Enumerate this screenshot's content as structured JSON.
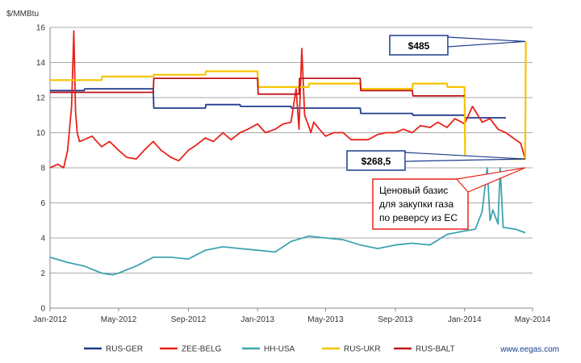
{
  "chart_data": {
    "type": "line",
    "ylabel": "$/MMBtu",
    "ylim": [
      0,
      16
    ],
    "yticks": [
      0,
      2,
      4,
      6,
      8,
      10,
      12,
      14,
      16
    ],
    "xlim": [
      "2012-01-01",
      "2014-05-01"
    ],
    "xticks": [
      {
        "date": "2012-01-01",
        "label": "Jan-2012"
      },
      {
        "date": "2012-05-01",
        "label": "May-2012"
      },
      {
        "date": "2012-09-01",
        "label": "Sep-2012"
      },
      {
        "date": "2013-01-01",
        "label": "Jan-2013"
      },
      {
        "date": "2013-05-01",
        "label": "May-2013"
      },
      {
        "date": "2013-09-01",
        "label": "Sep-2013"
      },
      {
        "date": "2014-01-01",
        "label": "Jan-2014"
      },
      {
        "date": "2014-05-01",
        "label": "May-2014"
      }
    ],
    "grid": true,
    "legend_position": "bottom",
    "series": [
      {
        "name": "RUS-GER",
        "color": "#1f3b8c",
        "x": [
          "2012-01-01",
          "2012-03-01",
          "2012-03-02",
          "2012-07-01",
          "2012-07-02",
          "2012-10-01",
          "2012-10-02",
          "2012-12-01",
          "2012-12-02",
          "2013-03-01",
          "2013-03-02",
          "2013-07-01",
          "2013-07-02",
          "2013-10-01",
          "2013-10-02",
          "2014-01-01",
          "2014-01-02",
          "2014-03-15"
        ],
        "y": [
          12.4,
          12.4,
          12.5,
          12.5,
          11.4,
          11.4,
          11.6,
          11.6,
          11.5,
          11.5,
          11.4,
          11.4,
          11.1,
          11.1,
          11.0,
          11.0,
          10.85,
          10.85
        ]
      },
      {
        "name": "ZEE-BELG",
        "color": "#e8231b",
        "x": [
          "2012-01-01",
          "2012-01-15",
          "2012-01-25",
          "2012-02-01",
          "2012-02-08",
          "2012-02-12",
          "2012-02-15",
          "2012-02-18",
          "2012-02-22",
          "2012-03-01",
          "2012-03-15",
          "2012-04-01",
          "2012-04-15",
          "2012-05-01",
          "2012-05-15",
          "2012-06-01",
          "2012-06-15",
          "2012-07-01",
          "2012-07-15",
          "2012-08-01",
          "2012-08-15",
          "2012-09-01",
          "2012-09-15",
          "2012-10-01",
          "2012-10-15",
          "2012-11-01",
          "2012-11-15",
          "2012-12-01",
          "2012-12-15",
          "2013-01-01",
          "2013-01-15",
          "2013-02-01",
          "2013-02-15",
          "2013-03-01",
          "2013-03-10",
          "2013-03-15",
          "2013-03-20",
          "2013-03-25",
          "2013-04-01",
          "2013-04-05",
          "2013-04-10",
          "2013-04-20",
          "2013-05-01",
          "2013-05-15",
          "2013-06-01",
          "2013-06-15",
          "2013-07-01",
          "2013-07-15",
          "2013-08-01",
          "2013-08-15",
          "2013-09-01",
          "2013-09-15",
          "2013-10-01",
          "2013-10-15",
          "2013-11-01",
          "2013-11-15",
          "2013-12-01",
          "2013-12-15",
          "2014-01-01",
          "2014-01-15",
          "2014-02-01",
          "2014-02-15",
          "2014-03-01",
          "2014-03-15",
          "2014-04-01",
          "2014-04-10",
          "2014-04-18"
        ],
        "y": [
          8.0,
          8.2,
          8.0,
          9.0,
          11.5,
          15.8,
          11.2,
          10.0,
          9.5,
          9.6,
          9.8,
          9.2,
          9.5,
          9.0,
          8.6,
          8.5,
          9.0,
          9.5,
          9.0,
          8.6,
          8.4,
          9.0,
          9.3,
          9.7,
          9.5,
          10.0,
          9.6,
          10.0,
          10.2,
          10.5,
          10.0,
          10.2,
          10.5,
          10.6,
          12.5,
          10.2,
          14.8,
          11.0,
          10.4,
          10.0,
          10.6,
          10.2,
          9.8,
          10.0,
          10.0,
          9.6,
          9.6,
          9.6,
          9.9,
          10.0,
          10.0,
          10.2,
          10.0,
          10.4,
          10.3,
          10.6,
          10.3,
          10.8,
          10.5,
          11.5,
          10.6,
          10.8,
          10.2,
          10.0,
          9.6,
          9.4,
          8.5
        ]
      },
      {
        "name": "HH-USA",
        "color": "#3ea4b0",
        "x": [
          "2012-01-01",
          "2012-02-01",
          "2012-03-01",
          "2012-04-01",
          "2012-04-20",
          "2012-05-01",
          "2012-06-01",
          "2012-07-01",
          "2012-08-01",
          "2012-09-01",
          "2012-10-01",
          "2012-11-01",
          "2012-12-01",
          "2013-01-01",
          "2013-02-01",
          "2013-03-01",
          "2013-04-01",
          "2013-05-01",
          "2013-06-01",
          "2013-07-01",
          "2013-08-01",
          "2013-09-01",
          "2013-10-01",
          "2013-11-01",
          "2013-12-01",
          "2014-01-01",
          "2014-01-20",
          "2014-02-01",
          "2014-02-10",
          "2014-02-15",
          "2014-02-20",
          "2014-03-01",
          "2014-03-05",
          "2014-03-10",
          "2014-04-01",
          "2014-04-18"
        ],
        "y": [
          2.9,
          2.6,
          2.4,
          2.0,
          1.9,
          2.0,
          2.4,
          2.9,
          2.9,
          2.8,
          3.3,
          3.5,
          3.4,
          3.3,
          3.2,
          3.8,
          4.1,
          4.0,
          3.9,
          3.6,
          3.4,
          3.6,
          3.7,
          3.6,
          4.2,
          4.4,
          4.5,
          5.5,
          8.0,
          5.0,
          5.6,
          4.8,
          8.0,
          4.6,
          4.5,
          4.3
        ]
      },
      {
        "name": "RUS-UKR",
        "color": "#f5c400",
        "x": [
          "2012-01-01",
          "2012-04-01",
          "2012-04-02",
          "2012-07-01",
          "2012-07-02",
          "2012-10-01",
          "2012-10-02",
          "2013-01-01",
          "2013-01-02",
          "2013-04-01",
          "2013-04-02",
          "2013-07-01",
          "2013-07-02",
          "2013-10-01",
          "2013-10-02",
          "2013-12-01",
          "2013-12-02",
          "2014-01-01",
          "2014-01-02",
          "2014-04-18",
          "2014-04-19"
        ],
        "y": [
          13.0,
          13.0,
          13.2,
          13.2,
          13.3,
          13.3,
          13.5,
          13.5,
          12.6,
          12.6,
          12.8,
          12.8,
          12.5,
          12.5,
          12.8,
          12.8,
          12.6,
          12.6,
          8.5,
          8.5,
          15.2
        ]
      },
      {
        "name": "RUS-BALT",
        "color": "#c0151a",
        "x": [
          "2012-01-01",
          "2012-07-01",
          "2012-07-02",
          "2013-01-01",
          "2013-01-02",
          "2013-03-15",
          "2013-03-16",
          "2013-07-01",
          "2013-07-02",
          "2013-10-01",
          "2013-10-02",
          "2014-01-01"
        ],
        "y": [
          12.3,
          12.3,
          13.1,
          13.1,
          12.2,
          12.2,
          13.1,
          13.1,
          12.4,
          12.4,
          12.1,
          12.1
        ]
      }
    ],
    "annotations": [
      {
        "label": "$485",
        "point": {
          "date": "2014-04-18",
          "value": 15.2
        }
      },
      {
        "label": "$268,5",
        "point": {
          "date": "2014-04-18",
          "value": 8.5
        }
      },
      {
        "label": "Ценовый базис для закупки газа по реверсу из ЕС",
        "lines": [
          "Ценовый базис",
          "для закупки газа",
          "по реверсу из ЕС"
        ],
        "point": {
          "date": "2014-04-18",
          "value": 8.0
        }
      }
    ]
  },
  "source": "www.eegas.com"
}
